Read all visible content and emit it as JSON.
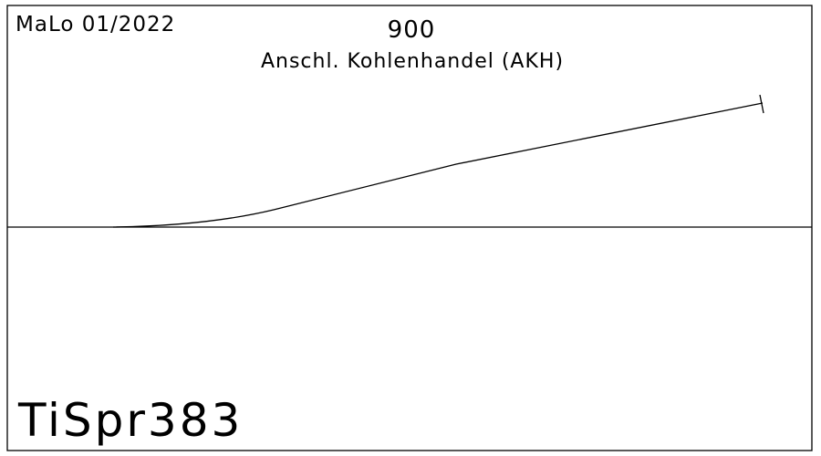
{
  "header": {
    "date_code": "MaLo 01/2022",
    "track_number": "900",
    "track_name": "Anschl. Kohlenhandel (AKH)"
  },
  "footer": {
    "sheet_id": "TiSpr383"
  }
}
